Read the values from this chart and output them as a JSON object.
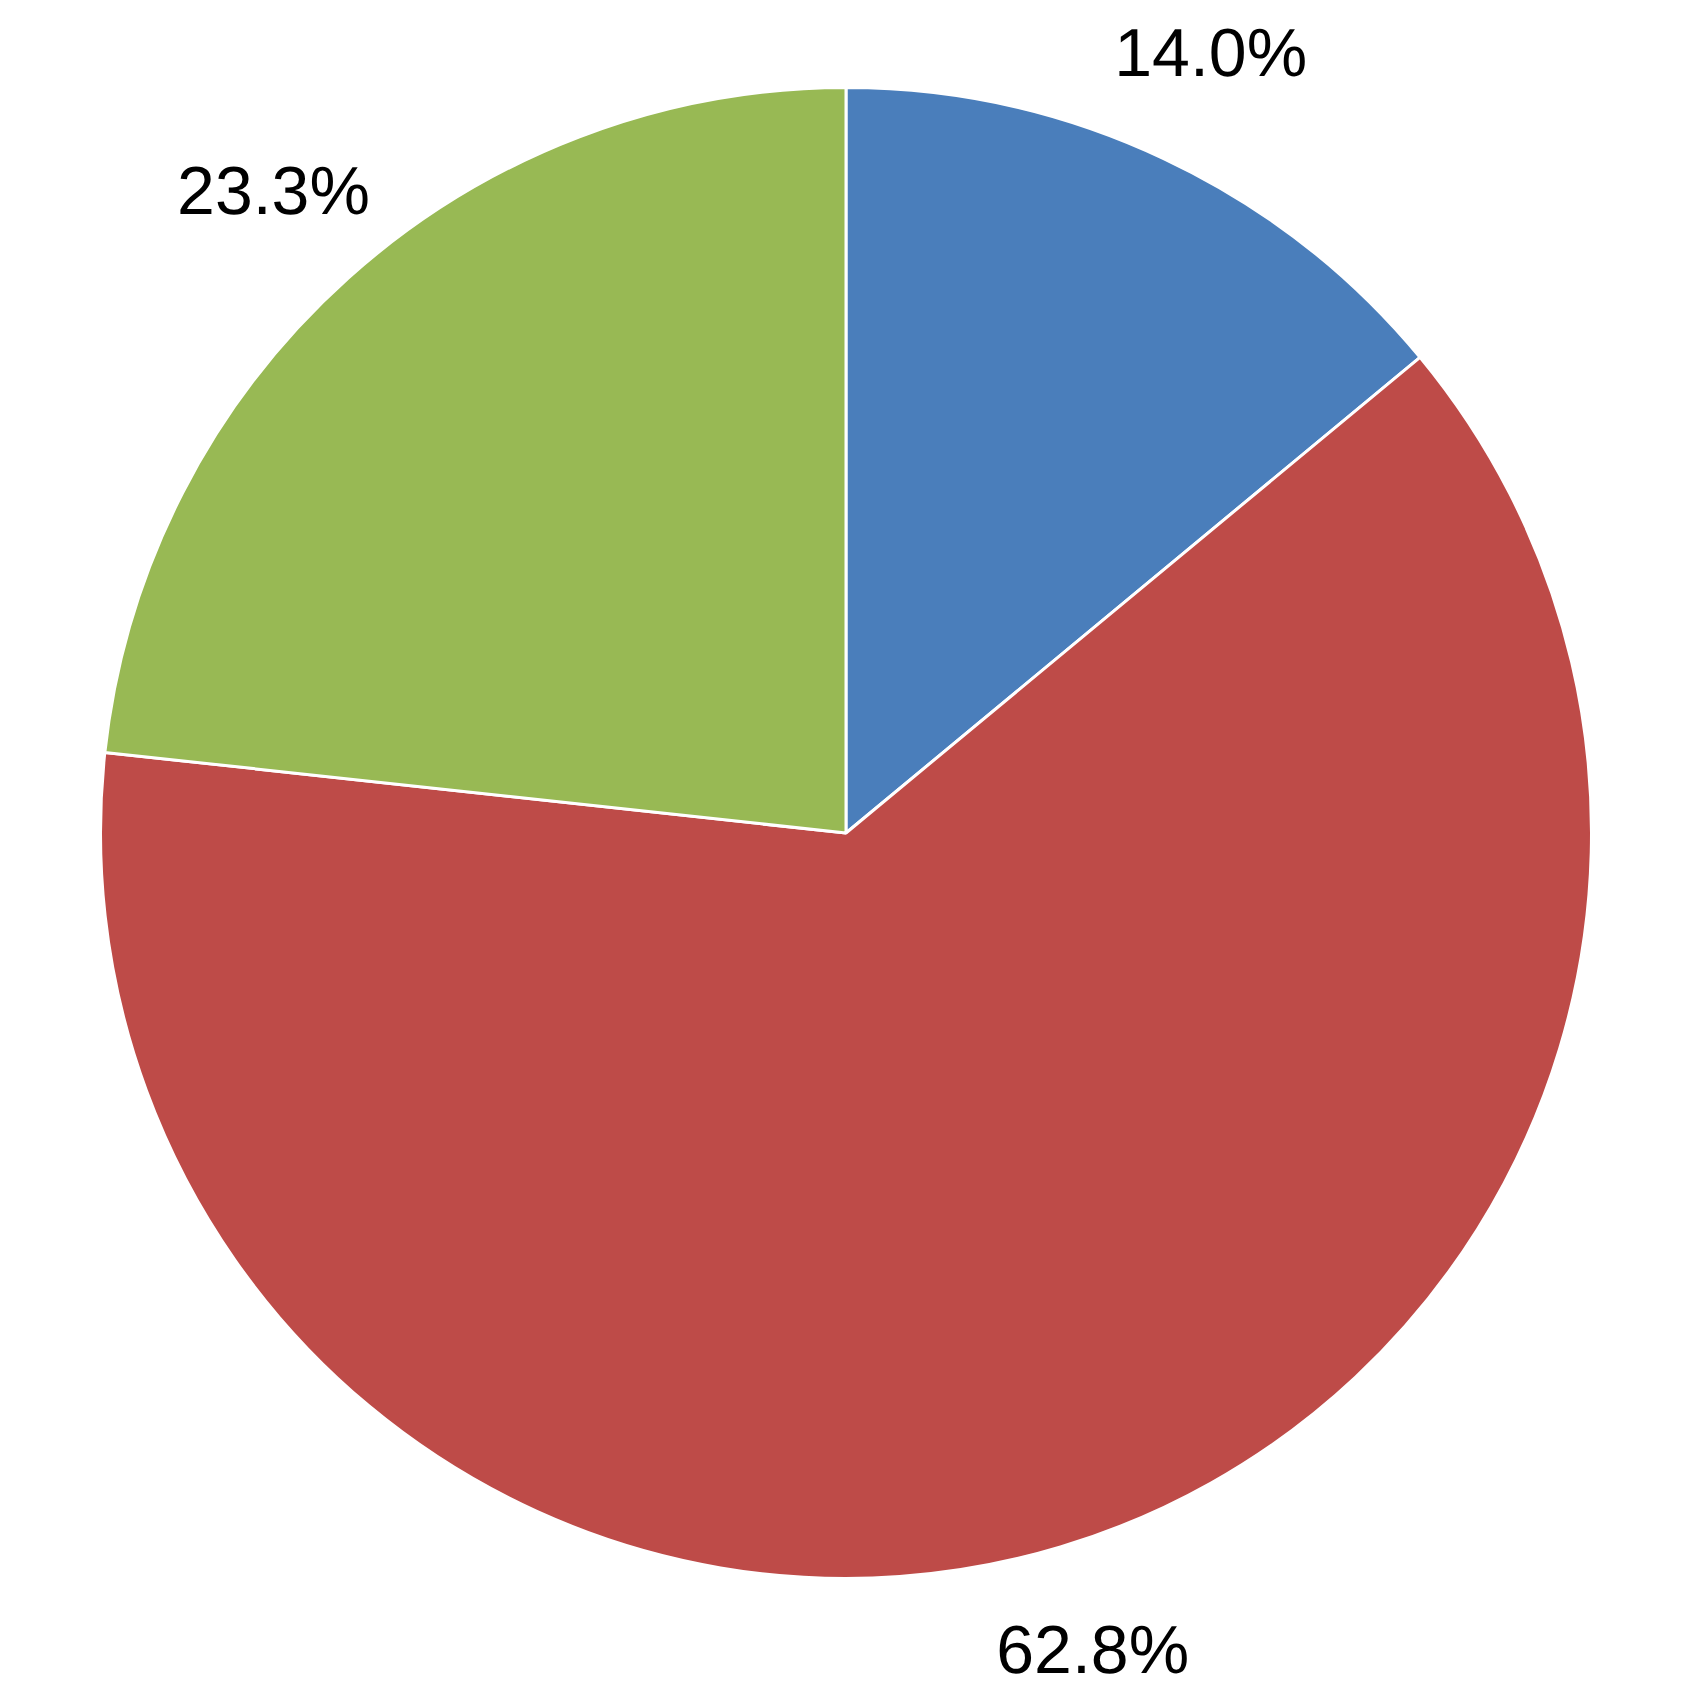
{
  "chart_data": {
    "type": "pie",
    "categories": [
      null,
      null,
      null
    ],
    "values": [
      14.0,
      62.8,
      23.3
    ],
    "colors": [
      "#4a7ebb",
      "#be4b48",
      "#98b954"
    ],
    "value_labels": [
      "14.0%",
      "62.8%",
      "23.3%"
    ],
    "legend": false
  }
}
